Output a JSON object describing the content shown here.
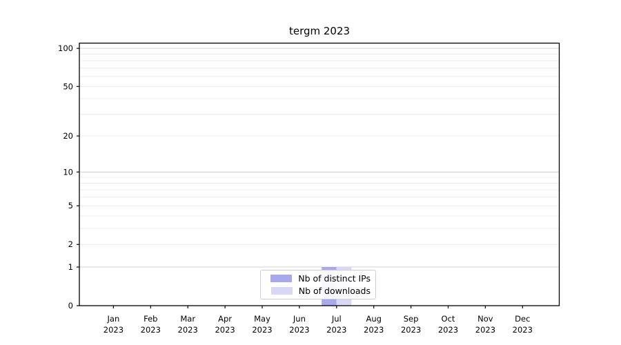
{
  "title": "tergm 2023",
  "chart_data": {
    "type": "bar",
    "title": "tergm 2023",
    "categories": [
      "Jan",
      "Feb",
      "Mar",
      "Apr",
      "May",
      "Jun",
      "Jul",
      "Aug",
      "Sep",
      "Oct",
      "Nov",
      "Dec"
    ],
    "x_year": "2023",
    "series": [
      {
        "name": "Nb of distinct IPs",
        "color": "#a8a8ec",
        "values": [
          0,
          0,
          0,
          0,
          0,
          0,
          1,
          0,
          0,
          0,
          0,
          0
        ]
      },
      {
        "name": "Nb of downloads",
        "color": "#d8d8f6",
        "values": [
          0,
          0,
          0,
          0,
          0,
          0,
          1,
          0,
          0,
          0,
          0,
          0
        ]
      }
    ],
    "yscale": "log1p",
    "ylim": [
      0,
      110
    ],
    "ytick_labels": [
      0,
      1,
      2,
      5,
      10,
      20,
      50,
      100
    ],
    "major_gridlines": [
      1,
      10,
      100
    ],
    "minor_gridlines": [
      2,
      3,
      4,
      5,
      6,
      7,
      8,
      9,
      20,
      30,
      40,
      50,
      60,
      70,
      80,
      90
    ],
    "grid": true,
    "legend_position": "lower center",
    "legend_entries": [
      "Nb of distinct IPs",
      "Nb of downloads"
    ]
  },
  "colors": {
    "spine": "#000000",
    "major_grid": "#d3d3d3",
    "minor_grid": "#ececec",
    "tick_label": "#000000",
    "background": "#ffffff"
  }
}
